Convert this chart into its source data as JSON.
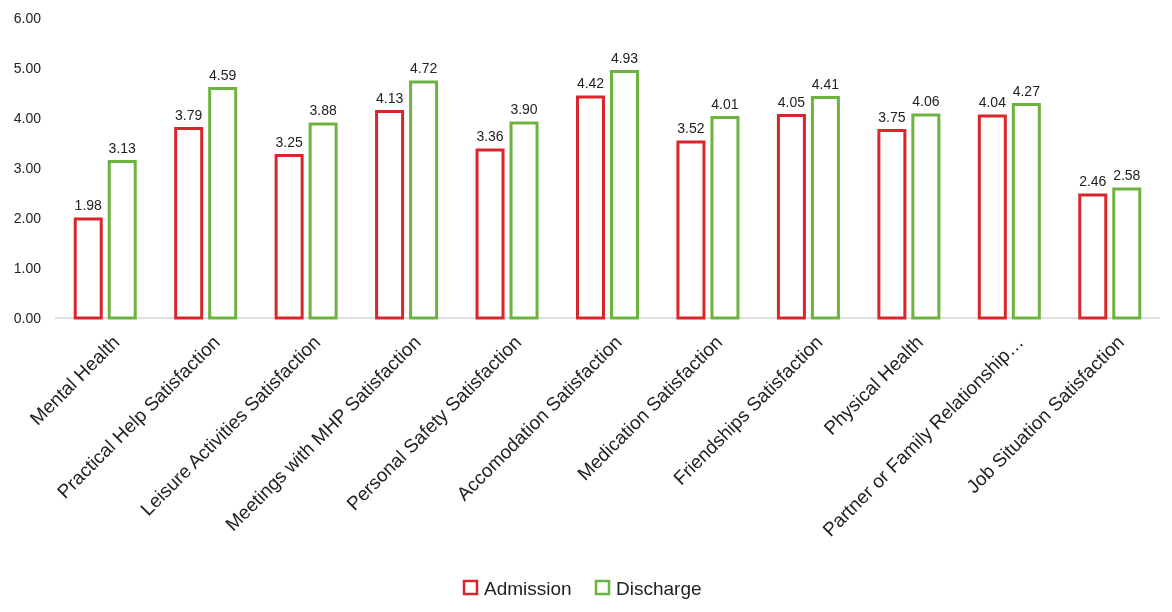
{
  "chart_data": {
    "type": "bar",
    "categories": [
      "Mental Health",
      "Practical Help Satisfaction",
      "Leisure Activities Satisfaction",
      "Meetings with MHP Satisfaction",
      "Personal Safety Satisfaction",
      "Accomodation Satisfaction",
      "Medication Satisfaction",
      "Friendships Satisfaction",
      "Physical Health",
      "Partner or Family Relationship…",
      "Job Situation Satisfaction"
    ],
    "series": [
      {
        "name": "Admission",
        "color": "#d9262c",
        "values": [
          1.98,
          3.79,
          3.25,
          4.13,
          3.36,
          4.42,
          3.52,
          4.05,
          3.75,
          4.04,
          2.46
        ],
        "value_labels": [
          "1.98",
          "3.79",
          "3.25",
          "4.13",
          "3.36",
          "4.42",
          "3.52",
          "4.05",
          "3.75",
          "4.04",
          "2.46"
        ]
      },
      {
        "name": "Discharge",
        "color": "#6db33f",
        "values": [
          3.13,
          4.59,
          3.88,
          4.72,
          3.9,
          4.93,
          4.01,
          4.41,
          4.06,
          4.27,
          2.58
        ],
        "value_labels": [
          "3.13",
          "4.59",
          "3.88",
          "4.72",
          "3.90",
          "4.93",
          "4.01",
          "4.41",
          "4.06",
          "4.27",
          "2.58"
        ]
      }
    ],
    "ylim": [
      0,
      6
    ],
    "yticks": [
      {
        "value": 0,
        "label": "0.00"
      },
      {
        "value": 1,
        "label": "1.00"
      },
      {
        "value": 2,
        "label": "2.00"
      },
      {
        "value": 3,
        "label": "3.00"
      },
      {
        "value": 4,
        "label": "4.00"
      },
      {
        "value": 5,
        "label": "5.00"
      },
      {
        "value": 6,
        "label": "6.00"
      }
    ],
    "grid": false,
    "legend": "bottom"
  }
}
